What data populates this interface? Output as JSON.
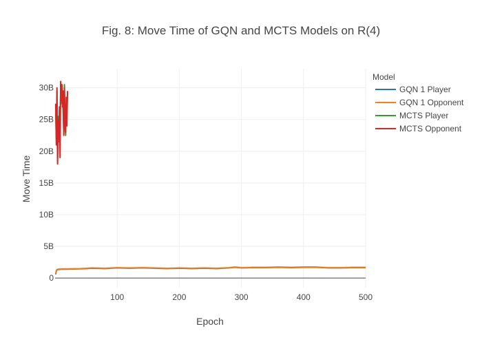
{
  "chart_data": {
    "type": "line",
    "title": "Fig. 8: Move Time of GQN and MCTS Models on R(4)",
    "xlabel": "Epoch",
    "ylabel": "Move Time",
    "xlim": [
      0,
      500
    ],
    "ylim": [
      -1500000000,
      33000000000
    ],
    "x_ticks": [
      100,
      200,
      300,
      400,
      500
    ],
    "x_tick_labels": [
      "100",
      "200",
      "300",
      "400",
      "500"
    ],
    "y_ticks": [
      0,
      5000000000,
      10000000000,
      15000000000,
      20000000000,
      25000000000,
      30000000000
    ],
    "y_tick_labels": [
      "0",
      "5B",
      "10B",
      "15B",
      "20B",
      "25B",
      "30B"
    ],
    "grid": true,
    "legend": {
      "title": "Model",
      "position": "top-right"
    },
    "series": [
      {
        "name": "GQN 1 Player",
        "color": "#1f77b4",
        "x": [
          1,
          2,
          3,
          5,
          10,
          20,
          40,
          60,
          80,
          100,
          120,
          140,
          160,
          180,
          200,
          220,
          240,
          260,
          280,
          290,
          300,
          320,
          340,
          360,
          380,
          400,
          420,
          440,
          460,
          480,
          500
        ],
        "y": [
          600000000,
          1100000000,
          1300000000,
          1350000000,
          1400000000,
          1400000000,
          1450000000,
          1550000000,
          1500000000,
          1600000000,
          1550000000,
          1600000000,
          1550000000,
          1500000000,
          1550000000,
          1500000000,
          1550000000,
          1500000000,
          1600000000,
          1700000000,
          1600000000,
          1650000000,
          1650000000,
          1700000000,
          1650000000,
          1700000000,
          1700000000,
          1600000000,
          1600000000,
          1650000000,
          1650000000
        ]
      },
      {
        "name": "GQN 1 Opponent",
        "color": "#ff7f0e",
        "x": [
          1,
          2,
          3,
          5,
          10,
          20,
          40,
          60,
          80,
          100,
          120,
          140,
          160,
          180,
          200,
          220,
          240,
          260,
          280,
          290,
          300,
          320,
          340,
          360,
          380,
          400,
          420,
          440,
          460,
          480,
          500
        ],
        "y": [
          700000000,
          1200000000,
          1350000000,
          1400000000,
          1450000000,
          1450000000,
          1500000000,
          1600000000,
          1550000000,
          1650000000,
          1600000000,
          1650000000,
          1600000000,
          1550000000,
          1600000000,
          1550000000,
          1600000000,
          1550000000,
          1650000000,
          1750000000,
          1650000000,
          1700000000,
          1700000000,
          1750000000,
          1700000000,
          1750000000,
          1750000000,
          1650000000,
          1650000000,
          1700000000,
          1700000000
        ]
      },
      {
        "name": "MCTS Player",
        "color": "#2ca02c",
        "x": [
          1,
          2,
          3,
          4,
          5,
          6,
          7,
          8,
          9,
          10,
          11,
          12,
          13,
          14,
          15,
          16,
          17,
          18,
          19,
          20
        ],
        "y": [
          26000000000,
          22000000000,
          29500000000,
          19000000000,
          25500000000,
          21500000000,
          26500000000,
          24000000000,
          30500000000,
          27500000000,
          29000000000,
          28500000000,
          26000000000,
          23000000000,
          30500000000,
          24000000000,
          22500000000,
          27500000000,
          26000000000,
          29000000000
        ]
      },
      {
        "name": "MCTS Opponent",
        "color": "#d62728",
        "x": [
          1,
          2,
          3,
          4,
          5,
          6,
          7,
          8,
          9,
          10,
          11,
          12,
          13,
          14,
          15,
          16,
          17,
          18,
          19,
          20
        ],
        "y": [
          27500000000,
          21000000000,
          30000000000,
          18000000000,
          25000000000,
          22000000000,
          27000000000,
          19000000000,
          31000000000,
          28000000000,
          30500000000,
          27000000000,
          29500000000,
          22500000000,
          30000000000,
          25000000000,
          23000000000,
          28500000000,
          24000000000,
          29500000000
        ]
      }
    ]
  }
}
